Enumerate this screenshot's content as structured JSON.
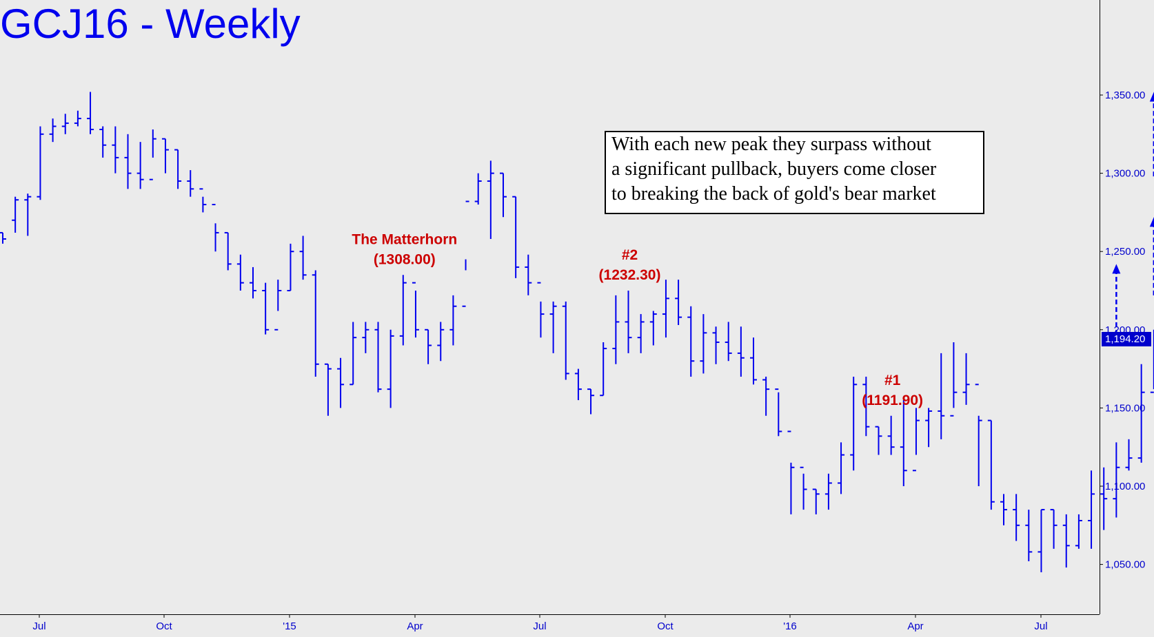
{
  "chart_data": {
    "type": "bar",
    "title": "GCJ16 - Weekly",
    "ylim": [
      1030,
      1400
    ],
    "y_ticks": [
      "1,050.00",
      "1,100.00",
      "1,150.00",
      "1,200.00",
      "1,250.00",
      "1,300.00",
      "1,350.00"
    ],
    "x_ticks": [
      "Jul",
      "Oct",
      "'15",
      "Apr",
      "Jul",
      "Oct",
      "'16",
      "Apr",
      "Jul"
    ],
    "last_price": "1,194.20",
    "annotations": [
      {
        "lines": [
          "The Matterhorn",
          "(1308.00)"
        ],
        "bar_index": 32
      },
      {
        "lines": [
          "#2",
          "(1232.30)"
        ],
        "bar_index": 50
      },
      {
        "lines": [
          "#1",
          "(1191.90)"
        ],
        "bar_index": 71
      }
    ],
    "note": [
      "With each new peak they surpass without",
      "a significant pullback, buyers come closer",
      "to breaking the back of gold's bear market"
    ],
    "target_arrows": [
      {
        "bar_index": 89,
        "from": 1192,
        "to": 1242
      },
      {
        "bar_index": 92,
        "from": 1222,
        "to": 1272
      },
      {
        "bar_index": 92,
        "from": 1298,
        "to": 1352
      }
    ],
    "stray_tick": {
      "bar_index": 102,
      "value": 1212
    },
    "bars": [
      [
        1262,
        1255,
        1262,
        1258
      ],
      [
        1285,
        1262,
        1270,
        1283
      ],
      [
        1287,
        1260,
        1283,
        1285
      ],
      [
        1330,
        1283,
        1285,
        1325
      ],
      [
        1335,
        1320,
        1325,
        1330
      ],
      [
        1338,
        1325,
        1330,
        1332
      ],
      [
        1340,
        1330,
        1332,
        1335
      ],
      [
        1352,
        1325,
        1335,
        1328
      ],
      [
        1330,
        1310,
        1328,
        1318
      ],
      [
        1330,
        1300,
        1318,
        1310
      ],
      [
        1325,
        1290,
        1310,
        1300
      ],
      [
        1320,
        1290,
        1300,
        1296
      ],
      [
        1328,
        1310,
        1296,
        1322
      ],
      [
        1322,
        1300,
        1322,
        1315
      ],
      [
        1315,
        1290,
        1315,
        1295
      ],
      [
        1302,
        1285,
        1295,
        1290
      ],
      [
        1285,
        1275,
        1290,
        1280
      ],
      [
        1268,
        1250,
        1280,
        1262
      ],
      [
        1262,
        1238,
        1262,
        1242
      ],
      [
        1248,
        1225,
        1242,
        1230
      ],
      [
        1240,
        1220,
        1230,
        1225
      ],
      [
        1230,
        1197,
        1225,
        1200
      ],
      [
        1232,
        1212,
        1200,
        1225
      ],
      [
        1255,
        1225,
        1225,
        1250
      ],
      [
        1260,
        1232,
        1250,
        1235
      ],
      [
        1238,
        1170,
        1235,
        1178
      ],
      [
        1178,
        1145,
        1178,
        1175
      ],
      [
        1182,
        1150,
        1175,
        1165
      ],
      [
        1205,
        1165,
        1165,
        1195
      ],
      [
        1205,
        1185,
        1195,
        1200
      ],
      [
        1205,
        1160,
        1200,
        1162
      ],
      [
        1200,
        1150,
        1162,
        1196
      ],
      [
        1235,
        1190,
        1196,
        1230
      ],
      [
        1225,
        1195,
        1230,
        1200
      ],
      [
        1200,
        1178,
        1200,
        1190
      ],
      [
        1205,
        1180,
        1190,
        1200
      ],
      [
        1222,
        1190,
        1200,
        1215
      ],
      [
        1245,
        1238,
        1215,
        1282
      ],
      [
        1300,
        1280,
        1282,
        1295
      ],
      [
        1308,
        1258,
        1295,
        1300
      ],
      [
        1300,
        1272,
        1300,
        1285
      ],
      [
        1285,
        1233,
        1285,
        1240
      ],
      [
        1248,
        1222,
        1240,
        1230
      ],
      [
        1218,
        1195,
        1230,
        1210
      ],
      [
        1218,
        1185,
        1210,
        1215
      ],
      [
        1218,
        1168,
        1215,
        1172
      ],
      [
        1175,
        1155,
        1172,
        1162
      ],
      [
        1162,
        1146,
        1162,
        1158
      ],
      [
        1192,
        1158,
        1158,
        1188
      ],
      [
        1222,
        1178,
        1188,
        1205
      ],
      [
        1225,
        1185,
        1205,
        1195
      ],
      [
        1210,
        1185,
        1195,
        1205
      ],
      [
        1212,
        1190,
        1205,
        1210
      ],
      [
        1232,
        1195,
        1210,
        1220
      ],
      [
        1232,
        1203,
        1220,
        1208
      ],
      [
        1215,
        1170,
        1208,
        1180
      ],
      [
        1210,
        1172,
        1180,
        1198
      ],
      [
        1202,
        1178,
        1198,
        1192
      ],
      [
        1205,
        1180,
        1192,
        1185
      ],
      [
        1202,
        1170,
        1185,
        1182
      ],
      [
        1195,
        1165,
        1182,
        1168
      ],
      [
        1170,
        1145,
        1168,
        1162
      ],
      [
        1160,
        1132,
        1162,
        1135
      ],
      [
        1115,
        1082,
        1135,
        1112
      ],
      [
        1108,
        1085,
        1112,
        1098
      ],
      [
        1098,
        1082,
        1098,
        1095
      ],
      [
        1108,
        1085,
        1095,
        1102
      ],
      [
        1128,
        1095,
        1102,
        1120
      ],
      [
        1170,
        1110,
        1120,
        1165
      ],
      [
        1170,
        1132,
        1165,
        1138
      ],
      [
        1138,
        1120,
        1138,
        1132
      ],
      [
        1145,
        1120,
        1132,
        1125
      ],
      [
        1155,
        1100,
        1125,
        1110
      ],
      [
        1150,
        1120,
        1110,
        1142
      ],
      [
        1150,
        1125,
        1142,
        1148
      ],
      [
        1185,
        1130,
        1148,
        1145
      ],
      [
        1192,
        1150,
        1145,
        1160
      ],
      [
        1185,
        1152,
        1160,
        1165
      ],
      [
        1145,
        1100,
        1165,
        1142
      ],
      [
        1142,
        1085,
        1142,
        1090
      ],
      [
        1095,
        1075,
        1090,
        1085
      ],
      [
        1095,
        1065,
        1085,
        1075
      ],
      [
        1085,
        1052,
        1075,
        1058
      ],
      [
        1085,
        1045,
        1058,
        1085
      ],
      [
        1085,
        1060,
        1085,
        1075
      ],
      [
        1082,
        1048,
        1075,
        1062
      ],
      [
        1082,
        1060,
        1062,
        1078
      ],
      [
        1110,
        1060,
        1078,
        1095
      ],
      [
        1112,
        1072,
        1095,
        1092
      ],
      [
        1128,
        1080,
        1092,
        1112
      ],
      [
        1130,
        1110,
        1112,
        1118
      ],
      [
        1178,
        1115,
        1118,
        1160
      ],
      [
        1200,
        1162,
        1160,
        1188
      ]
    ]
  }
}
